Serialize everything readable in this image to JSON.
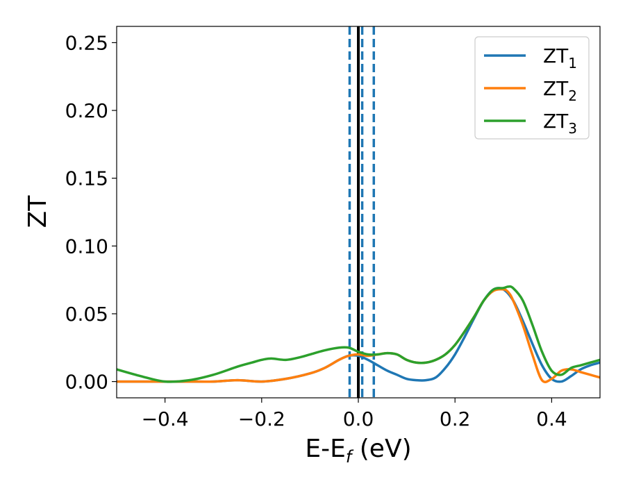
{
  "chart_data": {
    "type": "line",
    "title": "",
    "xlabel": "E-E",
    "xlabel_sub": "f",
    "xlabel_unit": " (eV)",
    "ylabel": "ZT",
    "xlim": [
      -0.5,
      0.5
    ],
    "ylim": [
      -0.012,
      0.262
    ],
    "xticks": [
      -0.4,
      -0.2,
      0.0,
      0.2,
      0.4
    ],
    "xtick_labels": [
      "−0.4",
      "−0.2",
      "0.0",
      "0.2",
      "0.4"
    ],
    "yticks": [
      0.0,
      0.05,
      0.1,
      0.15,
      0.2,
      0.25
    ],
    "ytick_labels": [
      "0.00",
      "0.05",
      "0.10",
      "0.15",
      "0.20",
      "0.25"
    ],
    "grid": false,
    "legend_position": "top-right",
    "vertical_lines": [
      {
        "x": 0.0,
        "style": "solid",
        "color": "#000000"
      },
      {
        "x": -0.018,
        "style": "dashed",
        "color": "#1f77b4"
      },
      {
        "x": 0.008,
        "style": "dashed",
        "color": "#1f77b4"
      },
      {
        "x": 0.032,
        "style": "dashed",
        "color": "#1f77b4"
      }
    ],
    "series": [
      {
        "name": "ZT",
        "name_sub": "1",
        "color": "#1f77b4",
        "x": [
          -0.5,
          -0.45,
          -0.4,
          -0.35,
          -0.3,
          -0.25,
          -0.2,
          -0.15,
          -0.1,
          -0.07,
          -0.04,
          -0.02,
          0.0,
          0.02,
          0.04,
          0.06,
          0.08,
          0.1,
          0.12,
          0.14,
          0.16,
          0.18,
          0.2,
          0.22,
          0.24,
          0.26,
          0.28,
          0.3,
          0.32,
          0.34,
          0.36,
          0.38,
          0.4,
          0.42,
          0.44,
          0.46,
          0.48,
          0.5
        ],
        "y": [
          0.0,
          0.0,
          0.0,
          0.0,
          0.0,
          0.001,
          0.0,
          0.002,
          0.006,
          0.01,
          0.016,
          0.019,
          0.019,
          0.016,
          0.012,
          0.008,
          0.005,
          0.002,
          0.001,
          0.001,
          0.003,
          0.01,
          0.02,
          0.033,
          0.047,
          0.06,
          0.068,
          0.068,
          0.06,
          0.045,
          0.028,
          0.012,
          0.002,
          0.0,
          0.004,
          0.009,
          0.012,
          0.014
        ]
      },
      {
        "name": "ZT",
        "name_sub": "2",
        "color": "#ff7f0e",
        "x": [
          -0.5,
          -0.45,
          -0.4,
          -0.35,
          -0.3,
          -0.25,
          -0.2,
          -0.15,
          -0.1,
          -0.07,
          -0.04,
          -0.02,
          0.0,
          0.02,
          0.04,
          0.06,
          0.08,
          0.1,
          0.12,
          0.14,
          0.16,
          0.18,
          0.2,
          0.22,
          0.24,
          0.26,
          0.28,
          0.3,
          0.31,
          0.32,
          0.34,
          0.36,
          0.38,
          0.4,
          0.42,
          0.44,
          0.46,
          0.48,
          0.5
        ],
        "y": [
          0.0,
          0.0,
          0.0,
          0.0,
          0.0,
          0.001,
          0.0,
          0.002,
          0.006,
          0.01,
          0.016,
          0.019,
          0.02,
          0.019,
          0.02,
          0.021,
          0.02,
          0.016,
          0.014,
          0.014,
          0.016,
          0.02,
          0.027,
          0.037,
          0.048,
          0.06,
          0.067,
          0.068,
          0.066,
          0.06,
          0.042,
          0.02,
          0.001,
          0.002,
          0.008,
          0.009,
          0.007,
          0.005,
          0.003
        ]
      },
      {
        "name": "ZT",
        "name_sub": "3",
        "color": "#2ca02c",
        "x": [
          -0.5,
          -0.45,
          -0.4,
          -0.35,
          -0.3,
          -0.25,
          -0.22,
          -0.2,
          -0.18,
          -0.15,
          -0.12,
          -0.1,
          -0.07,
          -0.04,
          -0.02,
          0.0,
          0.02,
          0.04,
          0.06,
          0.08,
          0.1,
          0.12,
          0.14,
          0.16,
          0.18,
          0.2,
          0.22,
          0.24,
          0.26,
          0.28,
          0.3,
          0.31,
          0.32,
          0.34,
          0.36,
          0.38,
          0.4,
          0.42,
          0.44,
          0.46,
          0.48,
          0.5
        ],
        "y": [
          0.009,
          0.004,
          0.0,
          0.001,
          0.005,
          0.011,
          0.014,
          0.016,
          0.017,
          0.016,
          0.018,
          0.02,
          0.023,
          0.025,
          0.025,
          0.022,
          0.02,
          0.02,
          0.021,
          0.02,
          0.016,
          0.014,
          0.014,
          0.016,
          0.02,
          0.027,
          0.037,
          0.048,
          0.06,
          0.068,
          0.069,
          0.07,
          0.069,
          0.06,
          0.042,
          0.022,
          0.008,
          0.005,
          0.01,
          0.012,
          0.014,
          0.016
        ]
      }
    ]
  }
}
